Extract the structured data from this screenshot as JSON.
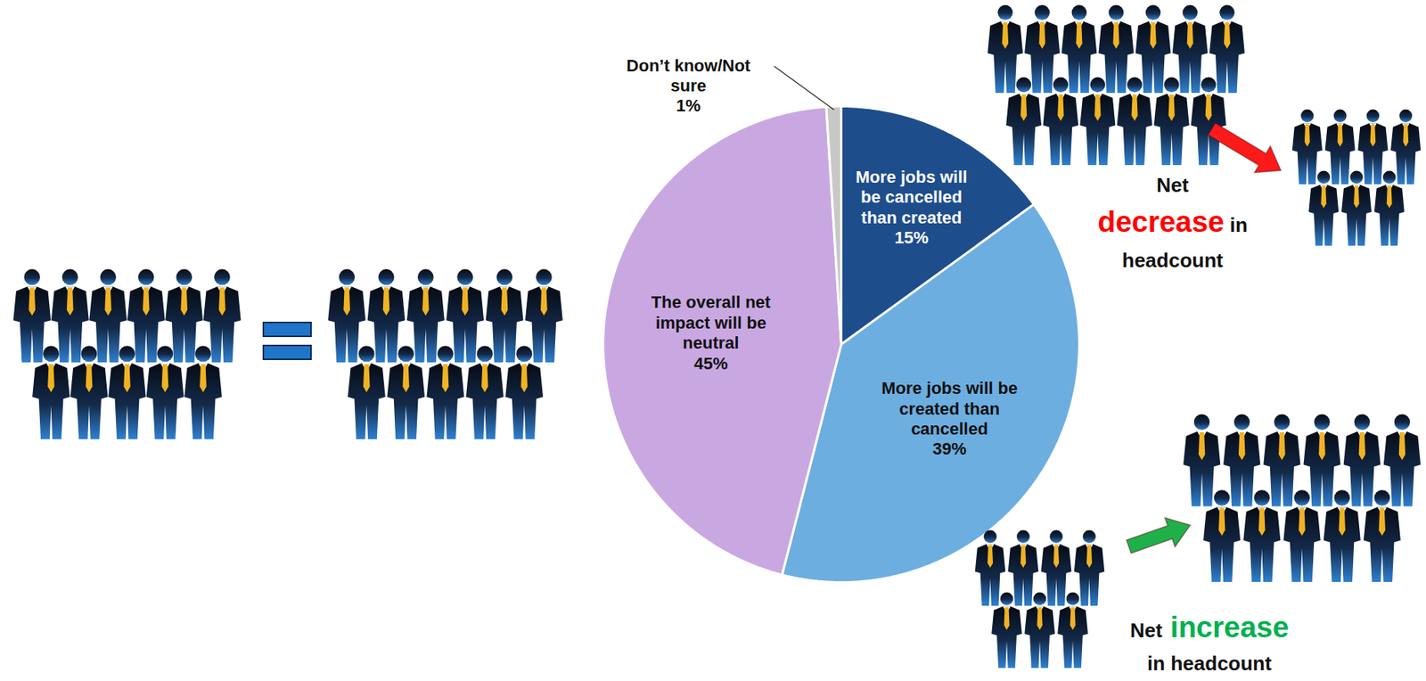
{
  "chart_data": {
    "type": "pie",
    "categories": [
      "More jobs will be cancelled than created",
      "More jobs will be created than cancelled",
      "The overall net impact will be neutral",
      "Don’t know/Not sure"
    ],
    "values": [
      15,
      39,
      45,
      1
    ],
    "value_labels": [
      "15%",
      "39%",
      "45%",
      "1%"
    ],
    "colors": [
      "#1e4d8c",
      "#6daee0",
      "#c9a8e2",
      "#c8c8c8"
    ],
    "data_labels": true,
    "annotations": [
      {
        "text": "Net decrease in headcount",
        "highlight": "decrease",
        "color": "#ff0000"
      },
      {
        "text": "Net increase in headcount",
        "highlight": "increase",
        "color": "#00b050"
      }
    ]
  }
}
